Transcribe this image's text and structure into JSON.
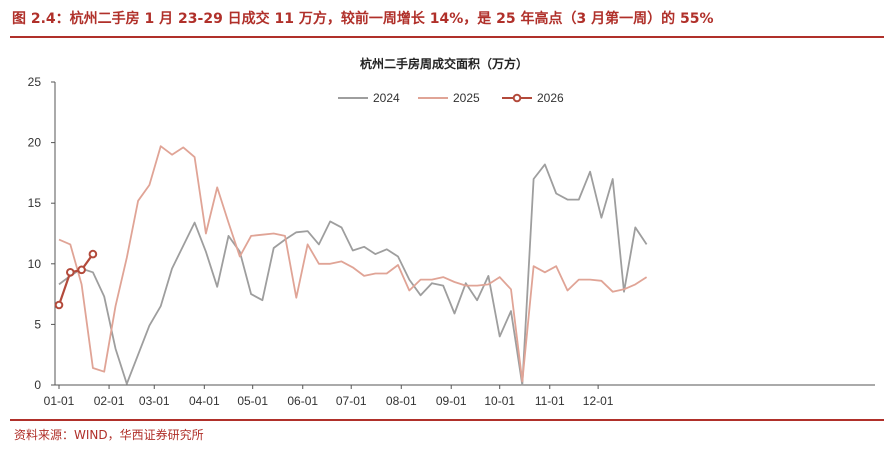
{
  "figure": {
    "title": "图 2.4：杭州二手房 1 月 23-29 日成交 11 万方，较前一周增长 14%，是 25 年高点（3 月第一周）的 55%",
    "source": "资料来源：WIND，华西证券研究所"
  },
  "chart_data": {
    "type": "line",
    "title": "杭州二手房周成交面积（万方）",
    "ylim": [
      0,
      25
    ],
    "yticks": [
      "0",
      "5",
      "10",
      "15",
      "20",
      "25"
    ],
    "xticks": [
      "01-01",
      "02-01",
      "03-01",
      "04-01",
      "05-01",
      "06-01",
      "07-01",
      "08-01",
      "09-01",
      "10-01",
      "11-01",
      "12-01"
    ],
    "legend_position": "top-center",
    "colors": {
      "2024": "#9e9e9e",
      "2025": "#e0a496",
      "2026": "#b34a3b"
    },
    "series": [
      {
        "name": "2024",
        "values": [
          8.3,
          9.0,
          9.6,
          9.3,
          7.3,
          3.0,
          0.1,
          2.5,
          4.9,
          6.5,
          9.6,
          11.5,
          13.4,
          11.0,
          8.1,
          12.3,
          11.0,
          7.5,
          7.0,
          11.3,
          12.0,
          12.6,
          12.7,
          11.6,
          13.5,
          13.0,
          11.1,
          11.4,
          10.8,
          11.2,
          10.6,
          8.7,
          7.4,
          8.4,
          8.2,
          5.9,
          8.4,
          7.0,
          9.0,
          4.0,
          6.1,
          0.0,
          17.0,
          18.2,
          15.8,
          15.3,
          15.3,
          17.6,
          13.8,
          17.0,
          7.7,
          13.0,
          11.6
        ]
      },
      {
        "name": "2025",
        "values": [
          12.0,
          11.6,
          8.3,
          1.4,
          1.1,
          6.5,
          10.5,
          15.2,
          16.5,
          19.7,
          19.0,
          19.6,
          18.8,
          12.5,
          16.3,
          13.4,
          10.6,
          12.3,
          12.4,
          12.5,
          12.3,
          7.2,
          11.6,
          10.0,
          10.0,
          10.2,
          9.7,
          9.0,
          9.2,
          9.2,
          9.9,
          7.8,
          8.7,
          8.7,
          8.9,
          8.5,
          8.2,
          8.2,
          8.3,
          8.9,
          7.9,
          0.3,
          9.8,
          9.3,
          9.8,
          7.8,
          8.7,
          8.7,
          8.6,
          7.7,
          7.9,
          8.3,
          8.9
        ]
      },
      {
        "name": "2026",
        "values": [
          6.6,
          9.3,
          9.5,
          10.8
        ]
      }
    ]
  }
}
